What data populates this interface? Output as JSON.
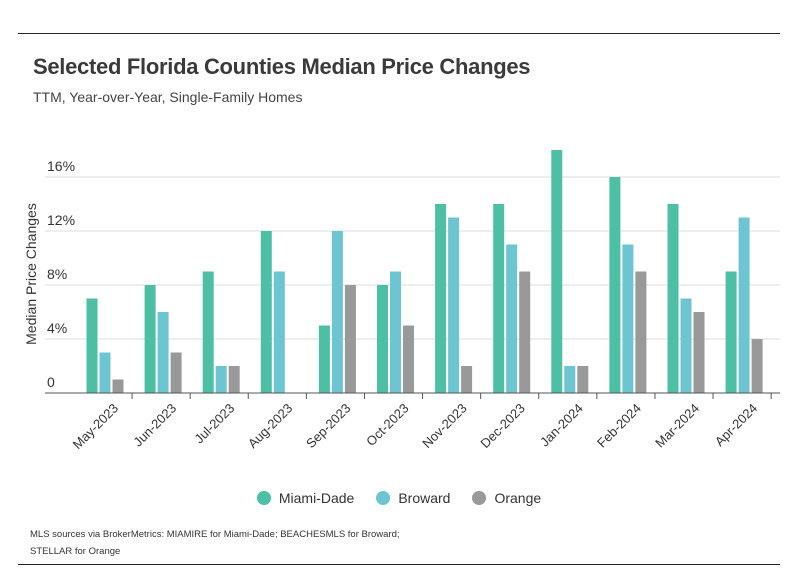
{
  "header": {
    "title": "Selected Florida Counties Median Price Changes",
    "subtitle": "TTM, Year-over-Year, Single-Family Homes"
  },
  "footnote": {
    "line1": "MLS sources via BrokerMetrics: MIAMIRE for Miami-Dade; BEACHESMLS for Broward;",
    "line2": "STELLAR for Orange"
  },
  "colors": {
    "miami_dade": "#4dbfa5",
    "broward": "#6cc5d0",
    "orange": "#999999"
  },
  "chart_data": {
    "type": "bar",
    "title": "Selected Florida Counties Median Price Changes",
    "subtitle": "TTM, Year-over-Year, Single-Family Homes",
    "xlabel": "",
    "ylabel": "Median Price Changes",
    "ylim": [
      0,
      18
    ],
    "yticks": [
      0,
      4,
      8,
      12,
      16
    ],
    "ytick_labels": [
      "0",
      "4%",
      "8%",
      "12%",
      "16%"
    ],
    "grid": true,
    "legend_position": "bottom-center",
    "categories": [
      "May-2023",
      "Jun-2023",
      "Jul-2023",
      "Aug-2023",
      "Sep-2023",
      "Oct-2023",
      "Nov-2023",
      "Dec-2023",
      "Jan-2024",
      "Feb-2024",
      "Mar-2024",
      "Apr-2024"
    ],
    "series": [
      {
        "name": "Miami-Dade",
        "color": "#4dbfa5",
        "values": [
          7,
          8,
          9,
          12,
          5,
          8,
          14,
          14,
          18,
          16,
          14,
          9
        ]
      },
      {
        "name": "Broward",
        "color": "#6cc5d0",
        "values": [
          3,
          6,
          2,
          9,
          12,
          9,
          13,
          11,
          2,
          11,
          7,
          13
        ]
      },
      {
        "name": "Orange",
        "color": "#999999",
        "values": [
          1,
          3,
          2,
          0,
          8,
          5,
          2,
          9,
          2,
          9,
          6,
          4
        ]
      }
    ]
  }
}
